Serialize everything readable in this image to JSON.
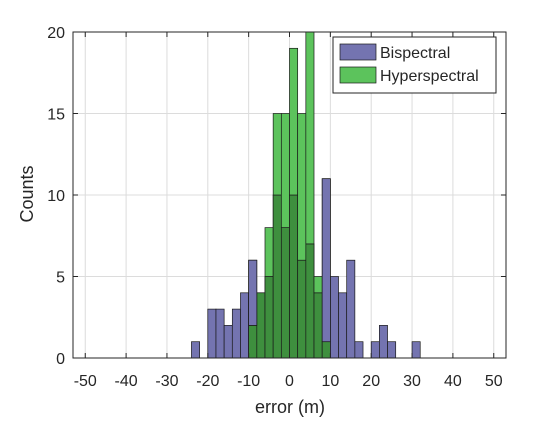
{
  "chart_data": {
    "type": "histogram",
    "xlabel": "error (m)",
    "ylabel": "Counts",
    "xlim": [
      -53,
      53
    ],
    "ylim": [
      0,
      20
    ],
    "bin_width": 2,
    "x_ticks": [
      -50,
      -40,
      -30,
      -20,
      -10,
      0,
      10,
      20,
      30,
      40,
      50
    ],
    "y_ticks": [
      0,
      5,
      10,
      15,
      20
    ],
    "grid": true,
    "legend_position": "top-right",
    "colors": {
      "Bispectral": "#7474b0",
      "Hyperspectral": "#5cc35c",
      "overlap": "#3e8f3e"
    },
    "series": [
      {
        "name": "Bispectral",
        "bins": [
          {
            "x0": -24,
            "count": 1
          },
          {
            "x0": -20,
            "count": 3
          },
          {
            "x0": -18,
            "count": 3
          },
          {
            "x0": -16,
            "count": 2
          },
          {
            "x0": -14,
            "count": 3
          },
          {
            "x0": -12,
            "count": 4
          },
          {
            "x0": -10,
            "count": 6
          },
          {
            "x0": -8,
            "count": 4
          },
          {
            "x0": -6,
            "count": 5
          },
          {
            "x0": -4,
            "count": 10
          },
          {
            "x0": -2,
            "count": 8
          },
          {
            "x0": 0,
            "count": 10
          },
          {
            "x0": 2,
            "count": 6
          },
          {
            "x0": 4,
            "count": 7
          },
          {
            "x0": 6,
            "count": 4
          },
          {
            "x0": 8,
            "count": 11
          },
          {
            "x0": 10,
            "count": 5
          },
          {
            "x0": 12,
            "count": 4
          },
          {
            "x0": 14,
            "count": 6
          },
          {
            "x0": 16,
            "count": 1
          },
          {
            "x0": 20,
            "count": 1
          },
          {
            "x0": 22,
            "count": 2
          },
          {
            "x0": 24,
            "count": 1
          },
          {
            "x0": 30,
            "count": 1
          }
        ]
      },
      {
        "name": "Hyperspectral",
        "bins": [
          {
            "x0": -10,
            "count": 2
          },
          {
            "x0": -8,
            "count": 4
          },
          {
            "x0": -6,
            "count": 8
          },
          {
            "x0": -4,
            "count": 15
          },
          {
            "x0": -2,
            "count": 15
          },
          {
            "x0": 0,
            "count": 19
          },
          {
            "x0": 2,
            "count": 15
          },
          {
            "x0": 4,
            "count": 20
          },
          {
            "x0": 6,
            "count": 5
          },
          {
            "x0": 8,
            "count": 1
          }
        ]
      }
    ]
  }
}
